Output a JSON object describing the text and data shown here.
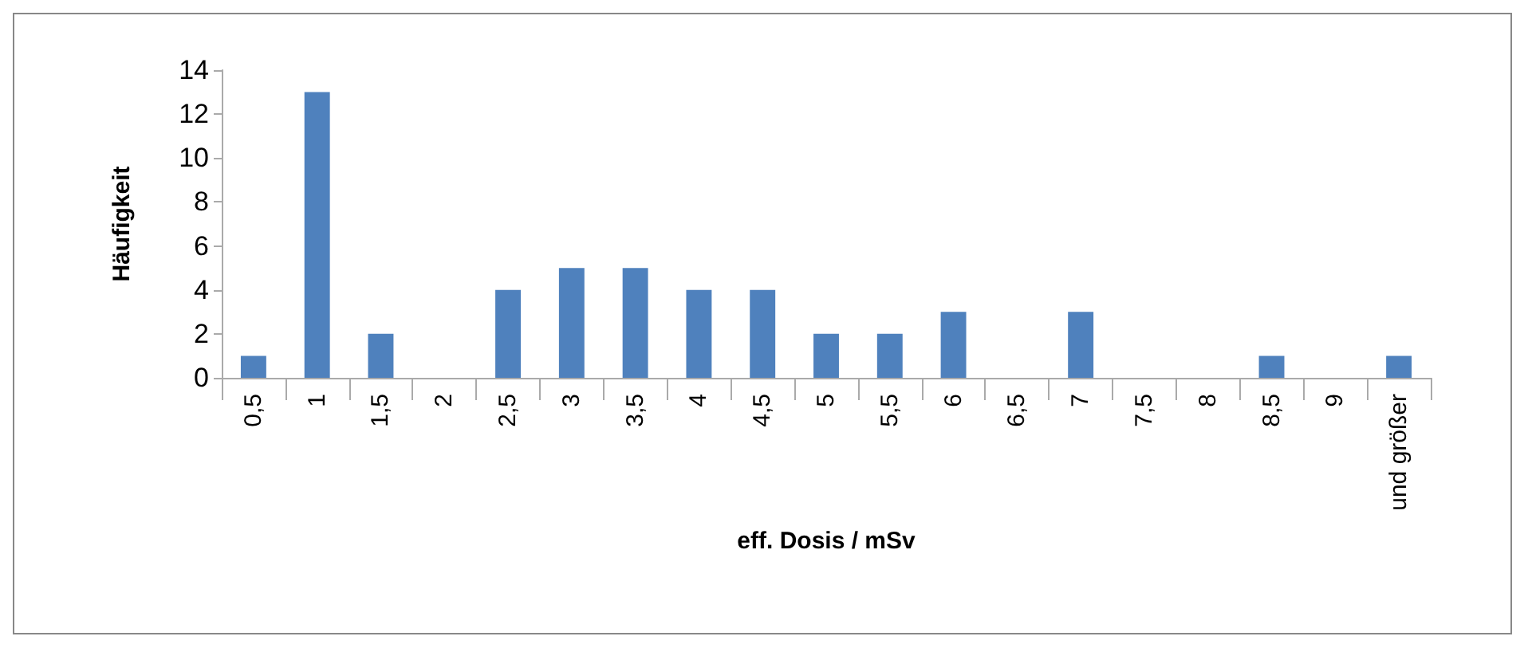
{
  "chart_data": {
    "type": "bar",
    "xlabel": "eff. Dosis / mSv",
    "ylabel": "Häufigkeit",
    "categories": [
      "0,5",
      "1",
      "1,5",
      "2",
      "2,5",
      "3",
      "3,5",
      "4",
      "4,5",
      "5",
      "5,5",
      "6",
      "6,5",
      "7",
      "7,5",
      "8",
      "8,5",
      "9",
      "und größer"
    ],
    "values": [
      1,
      13,
      2,
      0,
      4,
      5,
      5,
      4,
      4,
      2,
      2,
      3,
      0,
      3,
      0,
      0,
      1,
      0,
      1
    ],
    "color": "#4f81bd",
    "ylim": [
      0,
      14
    ],
    "yticks": [
      0,
      2,
      4,
      6,
      8,
      10,
      12,
      14
    ],
    "grid": false
  }
}
